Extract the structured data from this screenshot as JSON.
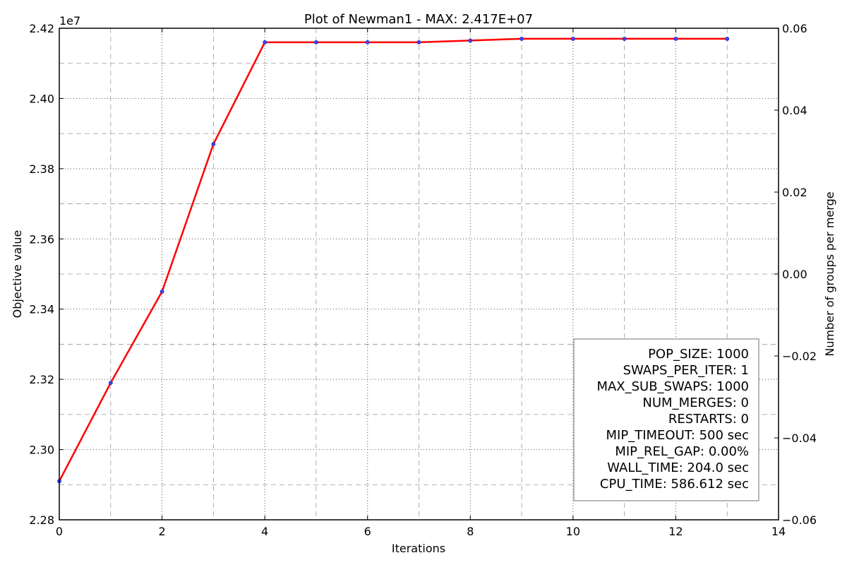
{
  "chart_data": {
    "type": "line",
    "title": "Plot of Newman1 - MAX: 2.417E+07",
    "xlabel": "Iterations",
    "ylabel": "Objective value",
    "y2label": "Number of groups per merge",
    "y_offset_label": "1e7",
    "xlim": [
      0,
      14
    ],
    "ylim": [
      22800000,
      24200000
    ],
    "y2lim": [
      -0.06,
      0.06
    ],
    "x_ticks": [
      0,
      2,
      4,
      6,
      8,
      10,
      12,
      14
    ],
    "x_tick_labels": [
      "0",
      "2",
      "4",
      "6",
      "8",
      "10",
      "12",
      "14"
    ],
    "y_ticks": [
      22800000,
      23000000,
      23200000,
      23400000,
      23600000,
      23800000,
      24000000,
      24200000
    ],
    "y_tick_labels": [
      "2.28",
      "2.30",
      "2.32",
      "2.34",
      "2.36",
      "2.38",
      "2.40",
      "2.42"
    ],
    "y2_ticks": [
      -0.06,
      -0.04,
      -0.02,
      0.0,
      0.02,
      0.04,
      0.06
    ],
    "y2_tick_labels": [
      "−0.06",
      "−0.04",
      "−0.02",
      "0.00",
      "0.02",
      "0.04",
      "0.06"
    ],
    "grid": true,
    "legend_position": "lower-right",
    "line_color": "#ff0000",
    "marker_color": "#4040ff",
    "series": [
      {
        "x": [
          0,
          1,
          2,
          3,
          4,
          5,
          6,
          7,
          8,
          9,
          10,
          11,
          12,
          13
        ],
        "values": [
          22910000,
          23190000,
          23450000,
          23870000,
          24160000,
          24160000,
          24160000,
          24160000,
          24165000,
          24170000,
          24170000,
          24170000,
          24170000,
          24170000
        ]
      }
    ],
    "annotations": [
      "POP_SIZE: 1000",
      "SWAPS_PER_ITER: 1",
      "MAX_SUB_SWAPS: 1000",
      "NUM_MERGES: 0",
      "RESTARTS: 0",
      "MIP_TIMEOUT: 500 sec",
      "MIP_REL_GAP: 0.00%",
      "WALL_TIME: 204.0 sec",
      "CPU_TIME: 586.612 sec"
    ]
  }
}
